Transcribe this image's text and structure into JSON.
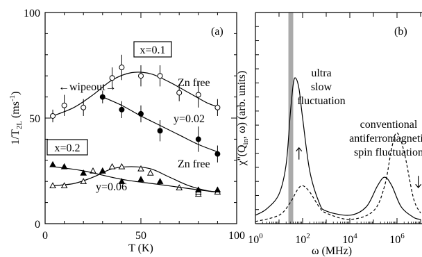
{
  "chart_data": [
    {
      "type": "scatter",
      "panel_label": "(a)",
      "xlabel": "T (K)",
      "ylabel": "1/T",
      "ylabel_sub": "2L",
      "ylabel_unit": " (ms",
      "ylabel_unit_sup": "-1",
      "ylabel_unit_close": ")",
      "xlim": [
        0,
        100
      ],
      "ylim": [
        0,
        100
      ],
      "x_ticks": [
        "0",
        "50",
        "100"
      ],
      "y_ticks": [
        "0",
        "50",
        "100"
      ],
      "grid": false,
      "annotations": {
        "box_x01": "x=0.1",
        "box_x02": "x=0.2",
        "zn_free_1": "Zn free",
        "y002": "y=0.02",
        "zn_free_2": "Zn free",
        "y006": "y=0.06",
        "wipeout": "←wipeout→"
      },
      "series": [
        {
          "marker": "open-circle",
          "points": [
            [
              4,
              51,
              3
            ],
            [
              10,
              56,
              5
            ],
            [
              20,
              55,
              4
            ],
            [
              35,
              69,
              5
            ],
            [
              40,
              74,
              6
            ],
            [
              50,
              70,
              5
            ],
            [
              60,
              70,
              5
            ],
            [
              70,
              62,
              4
            ],
            [
              80,
              61,
              6
            ],
            [
              90,
              55,
              4
            ]
          ],
          "fit": [
            [
              4,
              51
            ],
            [
              15,
              55
            ],
            [
              25,
              61
            ],
            [
              35,
              68
            ],
            [
              45,
              71.5
            ],
            [
              55,
              71
            ],
            [
              65,
              67
            ],
            [
              75,
              62
            ],
            [
              85,
              57
            ],
            [
              90,
              55.5
            ]
          ]
        },
        {
          "marker": "filled-circle",
          "points": [
            [
              30,
              60,
              3
            ],
            [
              40,
              54,
              4
            ],
            [
              50,
              52,
              4
            ],
            [
              60,
              44,
              5
            ],
            [
              80,
              40,
              6
            ],
            [
              90,
              33,
              4
            ]
          ],
          "fit": [
            [
              30,
              60
            ],
            [
              40,
              56
            ],
            [
              50,
              51
            ],
            [
              60,
              46.5
            ],
            [
              70,
              42
            ],
            [
              80,
              37.5
            ],
            [
              90,
              34
            ]
          ]
        },
        {
          "marker": "open-triangle",
          "points": [
            [
              4,
              18
            ],
            [
              10,
              18
            ],
            [
              20,
              20
            ],
            [
              25,
              25
            ],
            [
              30,
              25
            ],
            [
              35,
              27
            ],
            [
              40,
              27
            ],
            [
              50,
              26
            ],
            [
              55,
              24
            ],
            [
              70,
              17
            ],
            [
              80,
              14
            ],
            [
              80,
              15
            ],
            [
              90,
              15
            ]
          ],
          "fit": [
            [
              4,
              18
            ],
            [
              15,
              19
            ],
            [
              25,
              22
            ],
            [
              35,
              26
            ],
            [
              45,
              27
            ],
            [
              55,
              26
            ],
            [
              65,
              22
            ],
            [
              75,
              18
            ],
            [
              85,
              15.5
            ],
            [
              90,
              15
            ]
          ]
        },
        {
          "marker": "filled-triangle",
          "points": [
            [
              4,
              28
            ],
            [
              10,
              27
            ],
            [
              20,
              24
            ],
            [
              30,
              25
            ],
            [
              40,
              20
            ],
            [
              50,
              21
            ],
            [
              60,
              20
            ],
            [
              80,
              16
            ],
            [
              80,
              16
            ],
            [
              90,
              16
            ]
          ],
          "fit": [
            [
              4,
              27
            ],
            [
              20,
              25
            ],
            [
              40,
              21
            ],
            [
              60,
              18.5
            ],
            [
              80,
              16
            ],
            [
              90,
              15
            ]
          ]
        }
      ]
    },
    {
      "type": "line",
      "panel_label": "(b)",
      "xlabel": "ω (MHz)",
      "ylabel": "χ''(Q",
      "ylabel_sub": "in",
      "ylabel_rest": ", ω) (arb. units)",
      "x_scale": "log",
      "xlim": [
        1,
        10000000
      ],
      "x_ticks": [
        "10",
        "10",
        "10",
        "10"
      ],
      "x_tick_exps": [
        "0",
        "2",
        "4",
        "6"
      ],
      "shaded_band_x": [
        25,
        40
      ],
      "annotations": {
        "ultra1": "ultra",
        "ultra2": "slow",
        "ultra3": "fluctuation",
        "conv1": "conventional",
        "conv2": "antiferromagnetic",
        "conv3": "spin fluctuation"
      },
      "series": [
        {
          "style": "solid",
          "description_peaks": "peak near 5×10^1 MHz; smaller peak near 3×10^5 MHz",
          "points": [
            [
              1,
              0.04
            ],
            [
              3,
              0.07
            ],
            [
              10,
              0.14
            ],
            [
              20,
              0.28
            ],
            [
              30,
              0.52
            ],
            [
              40,
              0.66
            ],
            [
              50,
              0.69
            ],
            [
              70,
              0.64
            ],
            [
              100,
              0.5
            ],
            [
              200,
              0.25
            ],
            [
              500,
              0.1
            ],
            [
              1000,
              0.06
            ],
            [
              10000,
              0.04
            ],
            [
              50000,
              0.08
            ],
            [
              150000,
              0.18
            ],
            [
              300000,
              0.22
            ],
            [
              600000,
              0.18
            ],
            [
              1500000,
              0.08
            ],
            [
              5000000,
              0.03
            ],
            [
              10000000,
              0.02
            ]
          ]
        },
        {
          "style": "dashed",
          "description_peaks": "peak near 10^2 MHz; larger peak near 10^6 MHz",
          "points": [
            [
              1,
              0.01
            ],
            [
              10,
              0.04
            ],
            [
              30,
              0.1
            ],
            [
              60,
              0.16
            ],
            [
              100,
              0.18
            ],
            [
              200,
              0.15
            ],
            [
              500,
              0.08
            ],
            [
              1000,
              0.05
            ],
            [
              10000,
              0.02
            ],
            [
              100000,
              0.06
            ],
            [
              300000,
              0.18
            ],
            [
              600000,
              0.36
            ],
            [
              1000000,
              0.43
            ],
            [
              2000000,
              0.34
            ],
            [
              5000000,
              0.12
            ],
            [
              10000000,
              0.05
            ]
          ]
        }
      ],
      "arrows": [
        {
          "x": 70,
          "y": 0.33,
          "direction": "up"
        },
        {
          "x": 8000000,
          "y": 0.2,
          "direction": "down"
        }
      ]
    }
  ]
}
